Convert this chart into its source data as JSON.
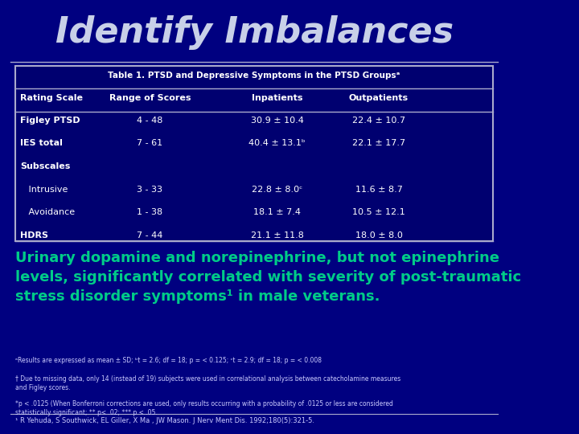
{
  "background_color": "#000080",
  "title": "Identify Imbalances",
  "title_color": "#c8d0e8",
  "title_fontsize": 32,
  "title_style": "italic",
  "table_title": "Table 1. PTSD and Depressive Symptoms in the PTSD Groupsᵃ",
  "table_bg": "#000070",
  "table_border": "#aaaacc",
  "header_row": [
    "Rating Scale",
    "Range of Scores",
    "Inpatients",
    "Outpatients"
  ],
  "data_rows": [
    [
      "Figley PTSD",
      "4 - 48",
      "30.9 ± 10.4",
      "22.4 ± 10.7"
    ],
    [
      "IES total",
      "7 - 61",
      "40.4 ± 13.1ᵇ",
      "22.1 ± 17.7"
    ],
    [
      "Subscales",
      "",
      "",
      ""
    ],
    [
      "   Intrusive",
      "3 - 33",
      "22.8 ± 8.0ᶜ",
      "11.6 ± 8.7"
    ],
    [
      "   Avoidance",
      "1 - 38",
      "18.1 ± 7.4",
      "10.5 ± 12.1"
    ],
    [
      "HDRS",
      "7 - 44",
      "21.1 ± 11.8",
      "18.0 ± 8.0"
    ]
  ],
  "highlight_text": "Urinary dopamine and norepinephrine, but not epinephrine\nlevels, significantly correlated with severity of post-traumatic\nstress disorder symptoms¹ in male veterans.",
  "highlight_color": "#00cc88",
  "highlight_fontsize": 13,
  "footnote1": "ᵃResults are expressed as mean ± SD; ᵇt = 2.6; df = 18; p = < 0.125; ᶜt = 2.9; df = 18; p = < 0.008",
  "footnote2": "† Due to missing data, only 14 (instead of 19) subjects were used in correlational analysis between catecholamine measures\nand Figley scores.",
  "footnote3": "*p < .0125 (When Bonferroni corrections are used, only results occurring with a probability of .0125 or less are considered\nstatistically significant; ** p< .02; *** p < .05.",
  "reference": "¹ R Yehuda, S Southwick, EL Giller, X Ma , JW Mason. J Nerv Ment Dis. 1992;180(5):321-5.",
  "footnote_color": "#ccccff",
  "reference_color": "#ccccff",
  "text_color": "#ffffff",
  "header_text_color": "#ffffff"
}
